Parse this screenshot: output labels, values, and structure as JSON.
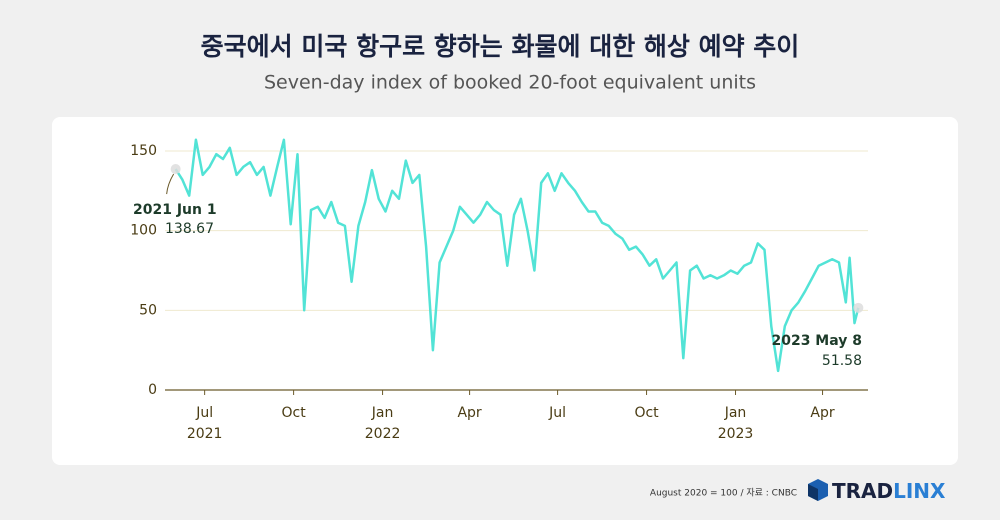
{
  "chart_data": {
    "type": "line",
    "title": "중국에서 미국 항구로 향하는 화물에 대한 해상 예약 추이",
    "subtitle": "Seven-day index of booked 20-foot equivalent units",
    "x": [
      "2021-06-01",
      "2021-06-08",
      "2021-06-15",
      "2021-06-22",
      "2021-06-29",
      "2021-07-06",
      "2021-07-13",
      "2021-07-20",
      "2021-07-27",
      "2021-08-03",
      "2021-08-10",
      "2021-08-17",
      "2021-08-24",
      "2021-08-31",
      "2021-09-07",
      "2021-09-14",
      "2021-09-21",
      "2021-09-28",
      "2021-10-05",
      "2021-10-12",
      "2021-10-19",
      "2021-10-26",
      "2021-11-02",
      "2021-11-09",
      "2021-11-16",
      "2021-11-23",
      "2021-11-30",
      "2021-12-07",
      "2021-12-14",
      "2021-12-21",
      "2021-12-28",
      "2022-01-04",
      "2022-01-11",
      "2022-01-18",
      "2022-01-25",
      "2022-02-01",
      "2022-02-08",
      "2022-02-15",
      "2022-02-22",
      "2022-03-01",
      "2022-03-08",
      "2022-03-15",
      "2022-03-22",
      "2022-03-29",
      "2022-04-05",
      "2022-04-12",
      "2022-04-19",
      "2022-04-26",
      "2022-05-03",
      "2022-05-10",
      "2022-05-17",
      "2022-05-24",
      "2022-05-31",
      "2022-06-07",
      "2022-06-14",
      "2022-06-21",
      "2022-06-28",
      "2022-07-05",
      "2022-07-12",
      "2022-07-19",
      "2022-07-26",
      "2022-08-02",
      "2022-08-09",
      "2022-08-16",
      "2022-08-23",
      "2022-08-30",
      "2022-09-06",
      "2022-09-13",
      "2022-09-20",
      "2022-09-27",
      "2022-10-04",
      "2022-10-11",
      "2022-10-18",
      "2022-10-25",
      "2022-11-01",
      "2022-11-08",
      "2022-11-15",
      "2022-11-22",
      "2022-11-29",
      "2022-12-06",
      "2022-12-13",
      "2022-12-20",
      "2022-12-27",
      "2023-01-03",
      "2023-01-10",
      "2023-01-17",
      "2023-01-24",
      "2023-01-31",
      "2023-02-07",
      "2023-02-14",
      "2023-02-21",
      "2023-02-28",
      "2023-03-07",
      "2023-03-14",
      "2023-03-21",
      "2023-03-28",
      "2023-04-04",
      "2023-04-11",
      "2023-04-18",
      "2023-04-25",
      "2023-04-29",
      "2023-05-04",
      "2023-05-08"
    ],
    "series": [
      {
        "color": "#52e3d6",
        "values": [
          138.67,
          132,
          122,
          157,
          135,
          140,
          148,
          145,
          152,
          135,
          140,
          143,
          135,
          140,
          122,
          140,
          157,
          104,
          148,
          50,
          113,
          115,
          108,
          118,
          105,
          103,
          68,
          103,
          118,
          138,
          120,
          112,
          125,
          120,
          144,
          130,
          135,
          90,
          25,
          80,
          90,
          100,
          115,
          110,
          105,
          110,
          118,
          113,
          110,
          78,
          110,
          120,
          100,
          75,
          130,
          136,
          125,
          136,
          130,
          125,
          118,
          112,
          112,
          105,
          103,
          98,
          95,
          88,
          90,
          85,
          78,
          82,
          70,
          75,
          80,
          20,
          75,
          78,
          70,
          72,
          70,
          72,
          75,
          73,
          78,
          80,
          92,
          88,
          40,
          12,
          40,
          50,
          55,
          62,
          70,
          78,
          80,
          82,
          80,
          55,
          83,
          42,
          51.58
        ]
      }
    ],
    "xlim": [
      "2021-05-21",
      "2023-05-18"
    ],
    "xticks": [
      {
        "value": "2021-07-01",
        "label": "Jul"
      },
      {
        "value": "2021-10-01",
        "label": "Oct"
      },
      {
        "value": "2022-01-01",
        "label": "Jan"
      },
      {
        "value": "2022-04-01",
        "label": "Apr"
      },
      {
        "value": "2022-07-01",
        "label": "Jul"
      },
      {
        "value": "2022-10-01",
        "label": "Oct"
      },
      {
        "value": "2023-01-01",
        "label": "Jan"
      },
      {
        "value": "2023-04-01",
        "label": "Apr"
      }
    ],
    "year_labels": [
      {
        "value": "2021-07-01",
        "label": "2021"
      },
      {
        "value": "2022-01-01",
        "label": "2022"
      },
      {
        "value": "2023-01-01",
        "label": "2023"
      }
    ],
    "ylim": [
      0,
      150
    ],
    "yticks": [
      0,
      50,
      100,
      150
    ],
    "grid": true,
    "annotations": [
      {
        "label": "2021 Jun 1"
      },
      {
        "label": "2023 May 8"
      }
    ],
    "footnote": "August 2020 = 100 / 자료 : CNBC",
    "brand": [
      "TRAD",
      "LINX"
    ]
  }
}
